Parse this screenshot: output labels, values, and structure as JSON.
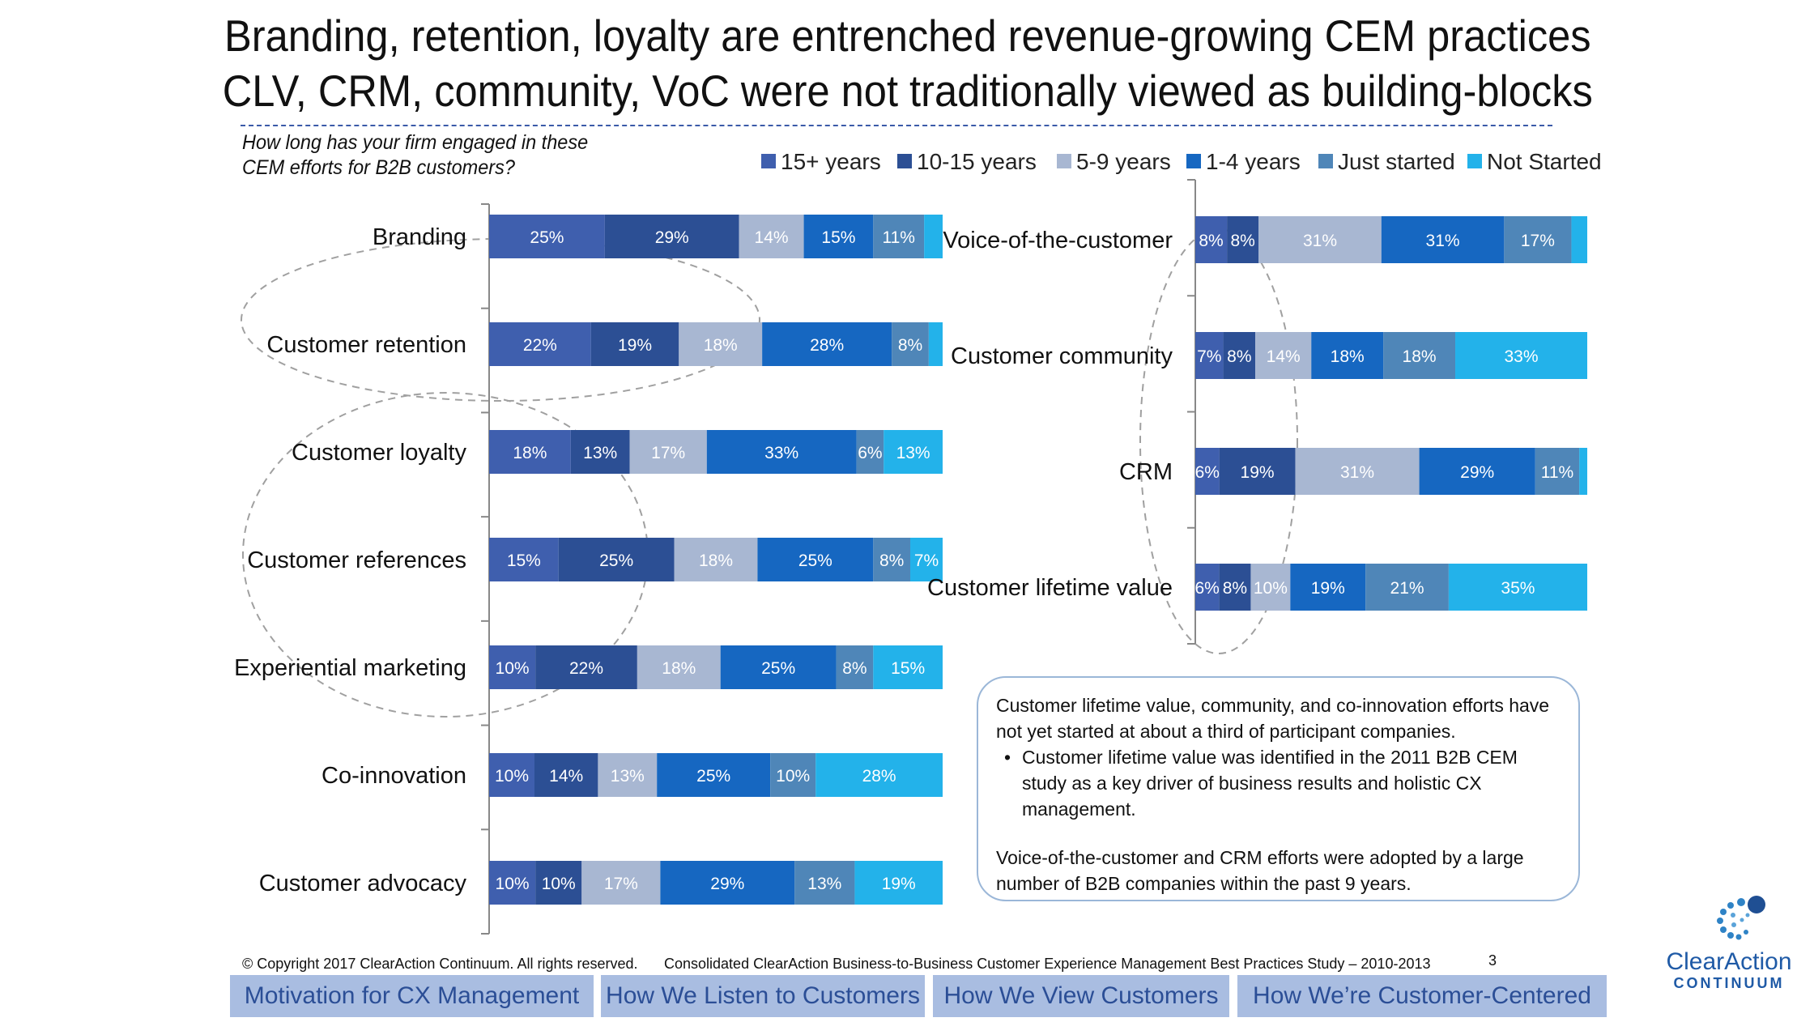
{
  "title": {
    "line1": "Branding, retention, loyalty are entrenched revenue-growing CEM practices",
    "line2": "CLV, CRM, community, VoC were not traditionally viewed as building-blocks"
  },
  "question": {
    "line1": "How long has your firm engaged in these",
    "line2": "CEM efforts for B2B customers?"
  },
  "colors": {
    "15+ years": "#3f5fae",
    "10-15 years": "#2c4f94",
    "5-9 years": "#a8b7d2",
    "1-4 years": "#1667c1",
    "Just started": "#4f86b8",
    "Not Started": "#23b2ea"
  },
  "chart_data": [
    {
      "type": "bar",
      "orientation": "horizontal",
      "stacked": true,
      "series_names": [
        "15+ years",
        "10-15 years",
        "5-9 years",
        "1-4 years",
        "Just started",
        "Not Started"
      ],
      "categories": [
        "Branding",
        "Customer retention",
        "Customer loyalty",
        "Customer references",
        "Experiential marketing",
        "Co-innovation",
        "Customer advocacy"
      ],
      "values": [
        [
          25,
          29,
          14,
          15,
          11,
          4
        ],
        [
          22,
          19,
          18,
          28,
          8,
          3
        ],
        [
          18,
          13,
          17,
          33,
          6,
          13
        ],
        [
          15,
          25,
          18,
          25,
          8,
          7
        ],
        [
          10,
          22,
          18,
          25,
          8,
          15
        ],
        [
          10,
          14,
          13,
          25,
          10,
          28
        ],
        [
          10,
          10,
          17,
          29,
          13,
          19
        ]
      ],
      "labels": [
        [
          "25%",
          "29%",
          "14%",
          "15%",
          "11%",
          ""
        ],
        [
          "22%",
          "19%",
          "18%",
          "28%",
          "8%",
          ""
        ],
        [
          "18%",
          "13%",
          "17%",
          "33%",
          "6%",
          "13%"
        ],
        [
          "15%",
          "25%",
          "18%",
          "25%",
          "8%",
          "7%"
        ],
        [
          "10%",
          "22%",
          "18%",
          "25%",
          "8%",
          "15%"
        ],
        [
          "10%",
          "14%",
          "13%",
          "25%",
          "10%",
          "28%"
        ],
        [
          "10%",
          "10%",
          "17%",
          "29%",
          "13%",
          "19%"
        ]
      ]
    },
    {
      "type": "bar",
      "orientation": "horizontal",
      "stacked": true,
      "series_names": [
        "15+ years",
        "10-15 years",
        "5-9 years",
        "1-4 years",
        "Just started",
        "Not Started"
      ],
      "categories": [
        "Voice-of-the-customer",
        "Customer community",
        "CRM",
        "Customer lifetime value"
      ],
      "values": [
        [
          8,
          8,
          31,
          31,
          17,
          4
        ],
        [
          7,
          8,
          14,
          18,
          18,
          33
        ],
        [
          6,
          19,
          31,
          29,
          11,
          2
        ],
        [
          6,
          8,
          10,
          19,
          21,
          35
        ]
      ],
      "labels": [
        [
          "8%",
          "8%",
          "31%",
          "31%",
          "17%",
          ""
        ],
        [
          "7%",
          "8%",
          "14%",
          "18%",
          "18%",
          "33%"
        ],
        [
          "6%",
          "19%",
          "31%",
          "29%",
          "11%",
          ""
        ],
        [
          "6%",
          "8%",
          "10%",
          "19%",
          "21%",
          "35%"
        ]
      ]
    }
  ],
  "callout": {
    "p1": "Customer lifetime value, community, and co-innovation efforts have not yet started at about a third of participant companies.",
    "bullet": "Customer lifetime value was identified in the 2011 B2B CEM study as a key driver of business results and holistic CX management.",
    "p2": "Voice-of-the-customer and CRM efforts were adopted by a large number of B2B companies within the past 9 years."
  },
  "footer": {
    "copyright": "© Copyright 2017 ClearAction Continuum. All rights reserved.",
    "study": "Consolidated ClearAction Business-to-Business Customer Experience Management Best Practices Study – 2010-2013",
    "page": "3"
  },
  "nav": [
    "Motivation for CX Management",
    "How We Listen to Customers",
    "How We View Customers",
    "How We’re Customer-Centered"
  ],
  "logo": {
    "name": "ClearAction",
    "sub": "CONTINUUM"
  }
}
